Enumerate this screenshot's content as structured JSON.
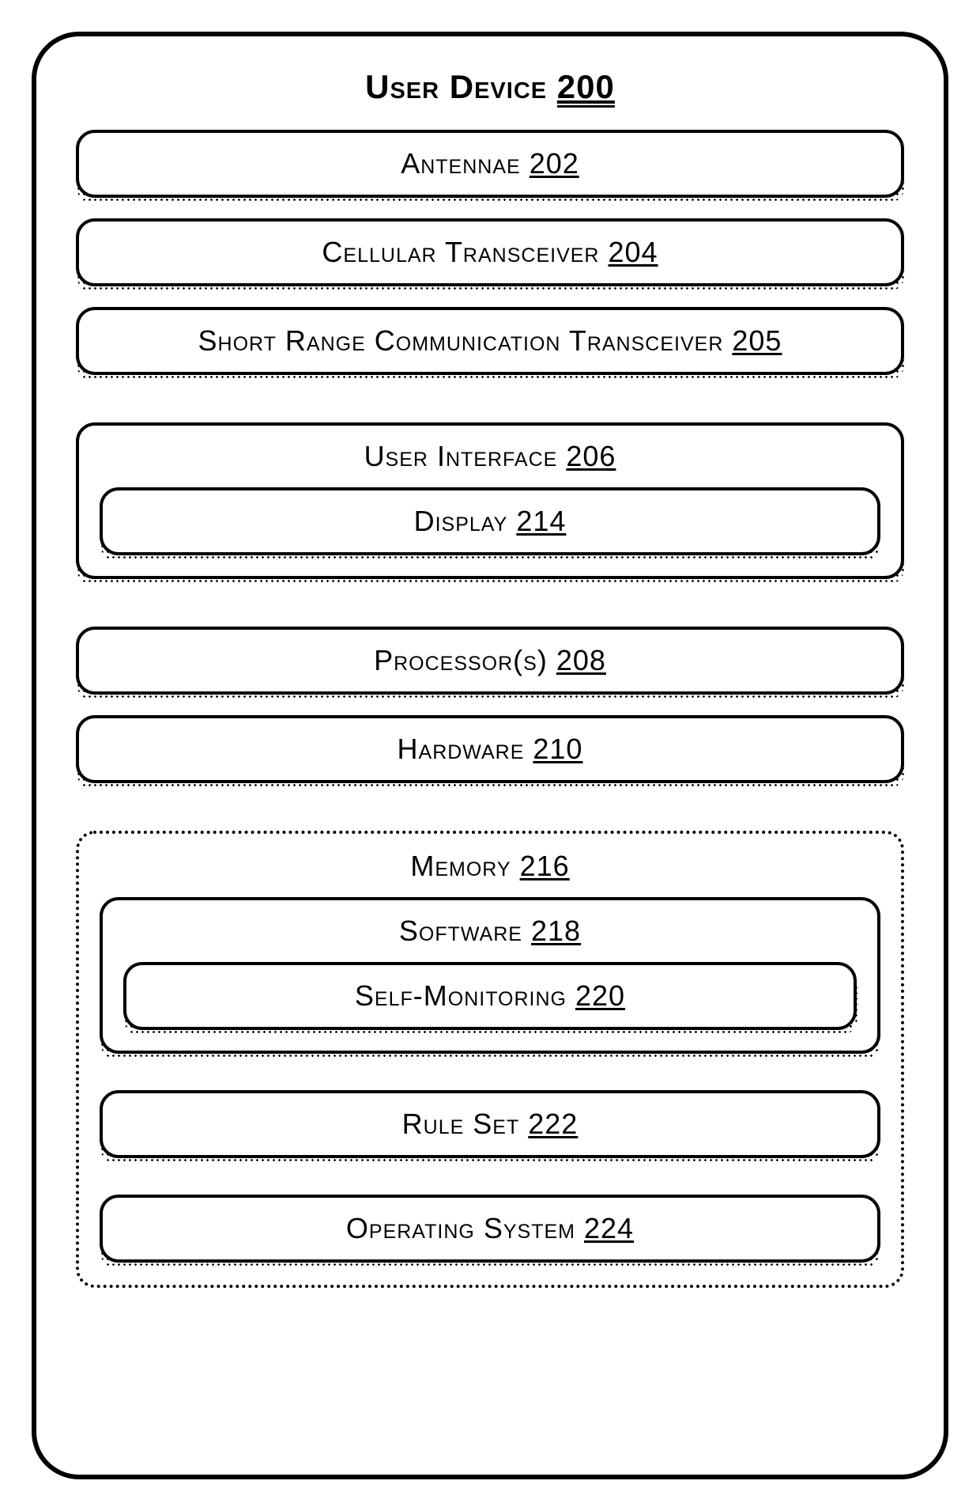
{
  "diagram": {
    "type": "block-diagram",
    "background_color": "#ffffff",
    "line_color": "#000000",
    "font_family": "Arial",
    "label_fontsize": 36,
    "title_fontsize": 42,
    "corner_radius": 24,
    "outer_corner_radius": 60,
    "border_width": 4,
    "outer_border_width": 6,
    "shadow_pattern": "halftone-dots",
    "root": {
      "label": "User Device",
      "ref": "200",
      "children": [
        {
          "label": "Antennae",
          "ref": "202"
        },
        {
          "label": "Cellular Transceiver",
          "ref": "204"
        },
        {
          "label": "Short Range Communication Transceiver",
          "ref": "205"
        },
        {
          "label": "User Interface",
          "ref": "206",
          "children": [
            {
              "label": "Display",
              "ref": "214"
            }
          ]
        },
        {
          "label": "Processor(s)",
          "ref": "208"
        },
        {
          "label": "Hardware",
          "ref": "210"
        },
        {
          "label": "Memory",
          "ref": "216",
          "border_style": "dotted",
          "children": [
            {
              "label": "Software",
              "ref": "218",
              "children": [
                {
                  "label": "Self-Monitoring",
                  "ref": "220"
                }
              ]
            },
            {
              "label": "Rule Set",
              "ref": "222"
            },
            {
              "label": "Operating System",
              "ref": "224"
            }
          ]
        }
      ]
    }
  }
}
